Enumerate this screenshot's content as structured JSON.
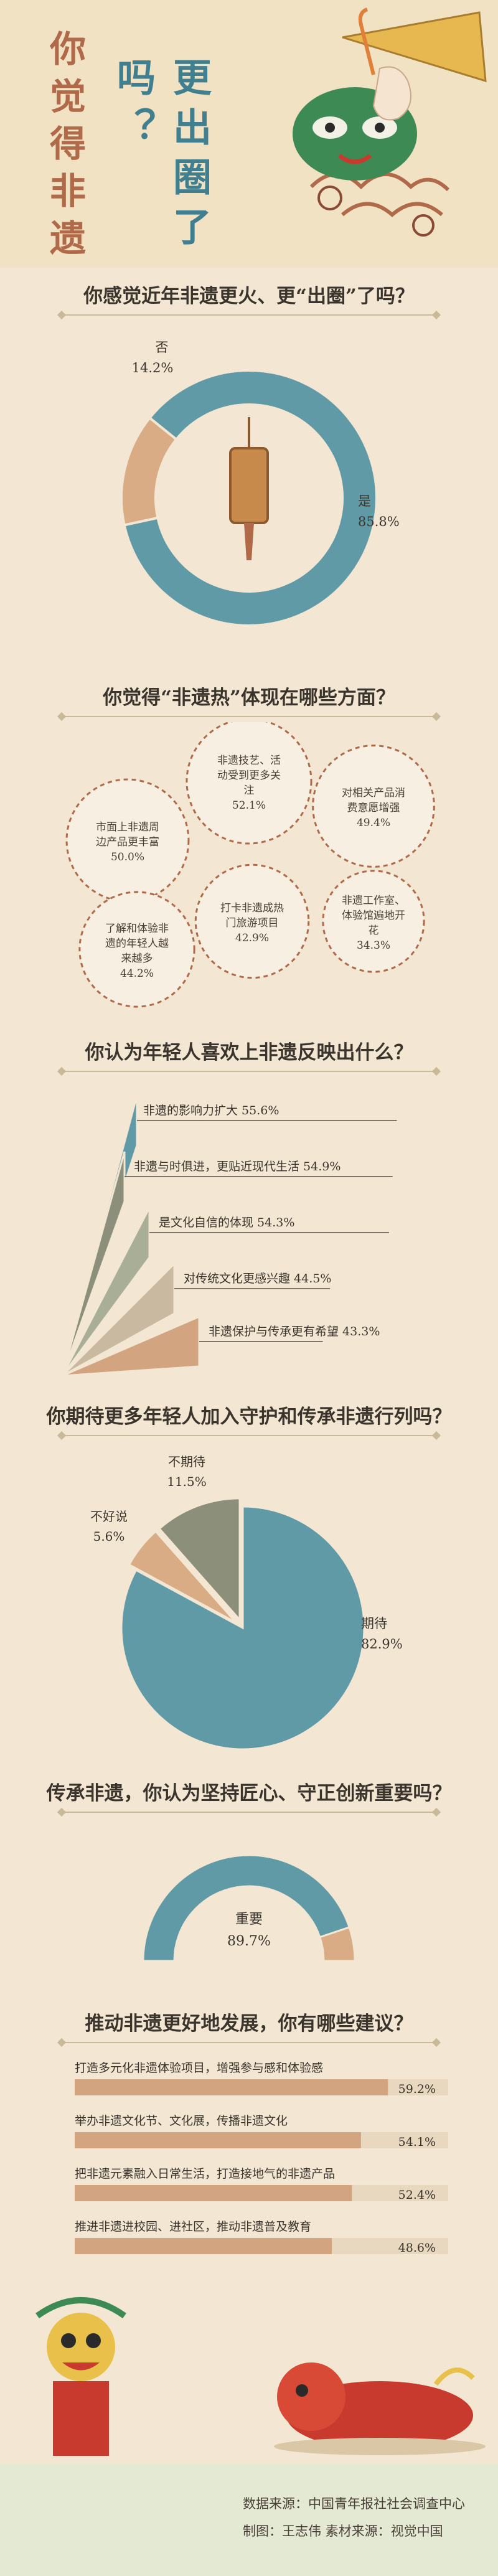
{
  "header": {
    "title_part1": "你觉得非遗",
    "title_part2": "更出圈了吗？"
  },
  "sections": {
    "q1": "你感觉近年非遗更火、更“出圈”了吗？",
    "q2": "你觉得“非遗热”体现在哪些方面？",
    "q3": "你认为年轻人喜欢上非遗反映出什么？",
    "q4": "你期待更多年轻人加入守护和传承非遗行列吗？",
    "q5": "传承非遗，你认为坚持匠心、守正创新重要吗？",
    "q6": "推动非遗更好地发展，你有哪些建议？"
  },
  "footer": {
    "source": "数据来源：中国青年报社社会调查中心",
    "credits": "制图：王志伟  素材来源：视觉中国"
  },
  "colors": {
    "teal": "#5f9aa6",
    "sand": "#d9ac86",
    "olive": "#8c907a",
    "sage": "#a9ae96",
    "tan": "#d2a480",
    "brown": "#b06a49",
    "background": "#f3e7d3"
  },
  "chart_data": [
    {
      "type": "pie",
      "title": "你感觉近年非遗更火、更“出圈”了吗？",
      "series": [
        {
          "label": "是",
          "value": 85.8,
          "value_text": "85.8%"
        },
        {
          "label": "否",
          "value": 14.2,
          "value_text": "14.2%"
        }
      ]
    },
    {
      "type": "bubble",
      "title": "你觉得“非遗热”体现在哪些方面？",
      "series": [
        {
          "label": "非遗技艺、活动受到更多关注",
          "value": 52.1,
          "value_text": "52.1%"
        },
        {
          "label": "市面上非遗周边产品更丰富",
          "value": 50.0,
          "value_text": "50.0%"
        },
        {
          "label": "对相关产品消费意愿增强",
          "value": 49.4,
          "value_text": "49.4%"
        },
        {
          "label": "了解和体验非遗的年轻人越来越多",
          "value": 44.2,
          "value_text": "44.2%"
        },
        {
          "label": "打卡非遗成热门旅游项目",
          "value": 42.9,
          "value_text": "42.9%"
        },
        {
          "label": "非遗工作室、体验馆遍地开花",
          "value": 34.3,
          "value_text": "34.3%"
        }
      ]
    },
    {
      "type": "bar",
      "title": "你认为年轻人喜欢上非遗反映出什么？",
      "series": [
        {
          "label": "非遗的影响力扩大",
          "value": 55.6,
          "value_text": "55.6%"
        },
        {
          "label": "非遗与时俱进，更贴近现代生活",
          "value": 54.9,
          "value_text": "54.9%"
        },
        {
          "label": "是文化自信的体现",
          "value": 54.3,
          "value_text": "54.3%"
        },
        {
          "label": "对传统文化更感兴趣",
          "value": 44.5,
          "value_text": "44.5%"
        },
        {
          "label": "非遗保护与传承更有希望",
          "value": 43.3,
          "value_text": "43.3%"
        }
      ]
    },
    {
      "type": "pie",
      "title": "你期待更多年轻人加入守护和传承非遗行列吗？",
      "series": [
        {
          "label": "期待",
          "value": 82.9,
          "value_text": "82.9%"
        },
        {
          "label": "不好说",
          "value": 5.6,
          "value_text": "5.6%"
        },
        {
          "label": "不期待",
          "value": 11.5,
          "value_text": "11.5%"
        }
      ]
    },
    {
      "type": "pie",
      "title": "传承非遗，你认为坚持匠心、守正创新重要吗？",
      "series": [
        {
          "label": "重要",
          "value": 89.7,
          "value_text": "89.7%"
        },
        {
          "label": "",
          "value": 10.3,
          "value_text": ""
        }
      ]
    },
    {
      "type": "bar",
      "title": "推动非遗更好地发展，你有哪些建议？",
      "series": [
        {
          "label": "打造多元化非遗体验项目，增强参与感和体验感",
          "value": 59.2,
          "value_text": "59.2%"
        },
        {
          "label": "举办非遗文化节、文化展，传播非遗文化",
          "value": 54.1,
          "value_text": "54.1%"
        },
        {
          "label": "把非遗元素融入日常生活，打造接地气的非遗产品",
          "value": 52.4,
          "value_text": "52.4%"
        },
        {
          "label": "推进非遗进校园、进社区，推动非遗普及教育",
          "value": 48.6,
          "value_text": "48.6%"
        }
      ]
    }
  ]
}
